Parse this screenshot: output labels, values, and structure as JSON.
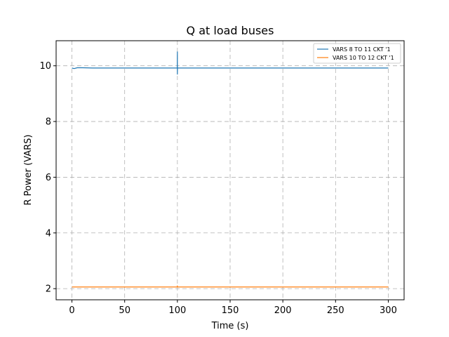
{
  "chart_data": {
    "type": "line",
    "title": "Q at load buses",
    "xlabel": "Time (s)",
    "ylabel": "R Power (VARS)",
    "xlim": [
      -15,
      315
    ],
    "ylim": [
      1.6,
      10.9
    ],
    "xticks": [
      0,
      50,
      100,
      150,
      200,
      250,
      300
    ],
    "yticks": [
      2,
      4,
      6,
      8,
      10
    ],
    "grid": true,
    "legend_position": "top-right",
    "series": [
      {
        "name": "VARS 8 TO 11 CKT '1",
        "color": "#1f77b4",
        "x": [
          0,
          2,
          5,
          10,
          20,
          40,
          60,
          80,
          99.9,
          100,
          100,
          100.1,
          120,
          150,
          200,
          250,
          300
        ],
        "y": [
          9.92,
          9.9,
          9.93,
          9.93,
          9.92,
          9.92,
          9.92,
          9.92,
          9.92,
          10.5,
          9.7,
          9.92,
          9.92,
          9.92,
          9.92,
          9.92,
          9.92
        ]
      },
      {
        "name": "VARS 10 TO 12 CKT '1",
        "color": "#ff7f0e",
        "x": [
          0,
          50,
          99.9,
          100,
          100.1,
          150,
          200,
          250,
          300
        ],
        "y": [
          2.06,
          2.06,
          2.06,
          2.1,
          2.06,
          2.06,
          2.06,
          2.06,
          2.06
        ]
      }
    ]
  }
}
